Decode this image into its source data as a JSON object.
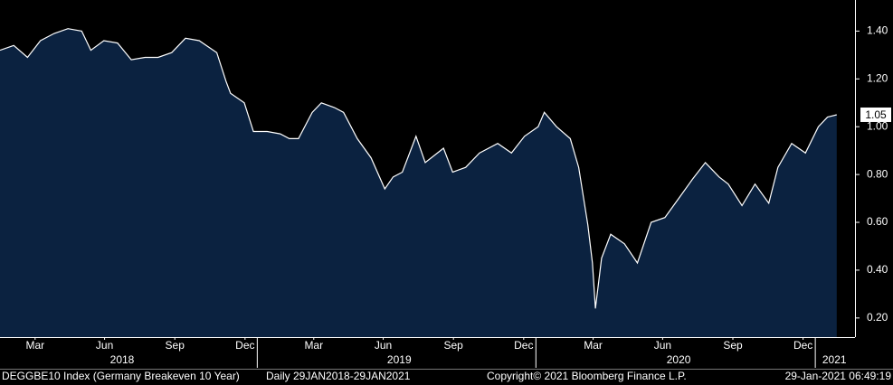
{
  "chart_data": {
    "type": "area",
    "x": [
      "2018-01-29",
      "2018-02-16",
      "2018-03-06",
      "2018-03-23",
      "2018-04-10",
      "2018-04-28",
      "2018-05-16",
      "2018-05-28",
      "2018-06-14",
      "2018-07-02",
      "2018-07-20",
      "2018-08-07",
      "2018-08-24",
      "2018-09-11",
      "2018-09-29",
      "2018-10-17",
      "2018-11-09",
      "2018-11-21",
      "2018-11-27",
      "2018-12-15",
      "2018-12-27",
      "2019-01-14",
      "2019-01-31",
      "2019-02-12",
      "2019-02-24",
      "2019-03-14",
      "2019-03-26",
      "2019-04-12",
      "2019-04-24",
      "2019-05-12",
      "2019-05-30",
      "2019-06-17",
      "2019-06-28",
      "2019-07-10",
      "2019-07-28",
      "2019-08-09",
      "2019-09-02",
      "2019-09-14",
      "2019-10-01",
      "2019-10-19",
      "2019-11-12",
      "2019-11-30",
      "2019-12-17",
      "2020-01-04",
      "2020-01-12",
      "2020-01-28",
      "2020-02-15",
      "2020-02-26",
      "2020-03-09",
      "2020-03-15",
      "2020-03-19",
      "2020-03-27",
      "2020-04-08",
      "2020-04-26",
      "2020-05-13",
      "2020-05-31",
      "2020-06-18",
      "2020-07-06",
      "2020-07-24",
      "2020-08-10",
      "2020-08-28",
      "2020-09-09",
      "2020-09-27",
      "2020-10-14",
      "2020-11-01",
      "2020-11-13",
      "2020-12-01",
      "2020-12-19",
      "2021-01-05",
      "2021-01-17",
      "2021-01-29"
    ],
    "values": [
      1.32,
      1.34,
      1.29,
      1.36,
      1.39,
      1.41,
      1.4,
      1.32,
      1.36,
      1.35,
      1.28,
      1.29,
      1.29,
      1.31,
      1.37,
      1.36,
      1.31,
      1.19,
      1.14,
      1.1,
      0.98,
      0.98,
      0.97,
      0.95,
      0.95,
      1.06,
      1.1,
      1.08,
      1.06,
      0.95,
      0.87,
      0.74,
      0.79,
      0.81,
      0.96,
      0.85,
      0.91,
      0.81,
      0.83,
      0.89,
      0.93,
      0.89,
      0.96,
      1.0,
      1.06,
      1.0,
      0.95,
      0.83,
      0.59,
      0.43,
      0.24,
      0.45,
      0.55,
      0.51,
      0.43,
      0.6,
      0.62,
      0.7,
      0.78,
      0.85,
      0.79,
      0.76,
      0.67,
      0.76,
      0.68,
      0.83,
      0.93,
      0.89,
      1.0,
      1.04,
      1.05
    ],
    "value_labels": [
      null,
      null,
      null,
      null,
      null,
      null,
      null,
      null,
      null,
      null,
      null,
      null,
      null,
      null,
      null,
      null,
      null,
      null,
      null,
      null,
      null,
      null,
      null,
      null,
      null,
      null,
      null,
      null,
      null,
      null,
      null,
      null,
      null,
      null,
      null,
      null,
      null,
      null,
      null,
      null,
      null,
      null,
      null,
      null,
      null,
      null,
      null,
      null,
      null,
      null,
      null,
      null,
      null,
      null,
      null,
      null,
      null,
      null,
      null,
      null,
      null,
      null,
      null,
      null,
      null,
      null,
      null,
      null,
      null,
      null,
      "1.05"
    ],
    "line_color": "#ffffff",
    "fill_color": "#0b2240",
    "xlim": [
      "2018-01-29",
      "2021-02-22"
    ],
    "ylim": [
      0.12,
      1.53
    ],
    "yticks": [
      {
        "value": 0.2,
        "label": "0.20"
      },
      {
        "value": 0.4,
        "label": "0.40"
      },
      {
        "value": 0.6,
        "label": "0.60"
      },
      {
        "value": 0.8,
        "label": "0.80"
      },
      {
        "value": 1.0,
        "label": "1.00"
      },
      {
        "value": 1.2,
        "label": "1.20"
      },
      {
        "value": 1.4,
        "label": "1.40"
      }
    ],
    "xticks": [
      {
        "value": "2018-03-16",
        "label": "Mar"
      },
      {
        "value": "2018-06-15",
        "label": "Jun"
      },
      {
        "value": "2018-09-15",
        "label": "Sep"
      },
      {
        "value": "2018-12-16",
        "label": "Dec"
      },
      {
        "value": "2019-03-16",
        "label": "Mar"
      },
      {
        "value": "2019-06-15",
        "label": "Jun"
      },
      {
        "value": "2019-09-15",
        "label": "Sep"
      },
      {
        "value": "2019-12-16",
        "label": "Dec"
      },
      {
        "value": "2020-03-16",
        "label": "Mar"
      },
      {
        "value": "2020-06-15",
        "label": "Jun"
      },
      {
        "value": "2020-09-15",
        "label": "Sep"
      },
      {
        "value": "2020-12-16",
        "label": "Dec"
      }
    ],
    "year_ticks": [
      {
        "value": "2018-07-08",
        "label": "2018"
      },
      {
        "value": "2019-07-06",
        "label": "2019"
      },
      {
        "value": "2020-07-06",
        "label": "2020"
      },
      {
        "value": "2021-01-26",
        "label": "2021"
      }
    ],
    "year_boundaries": [
      "2019-01-01",
      "2020-01-01",
      "2021-01-01"
    ],
    "footer": [
      "DEGGBE10 Index (Germany Breakeven 10 Year)",
      "Daily 29JAN2018-29JAN2021",
      "Copyright© 2021 Bloomberg Finance L.P.",
      "29-Jan-2021 06:49:19"
    ]
  }
}
